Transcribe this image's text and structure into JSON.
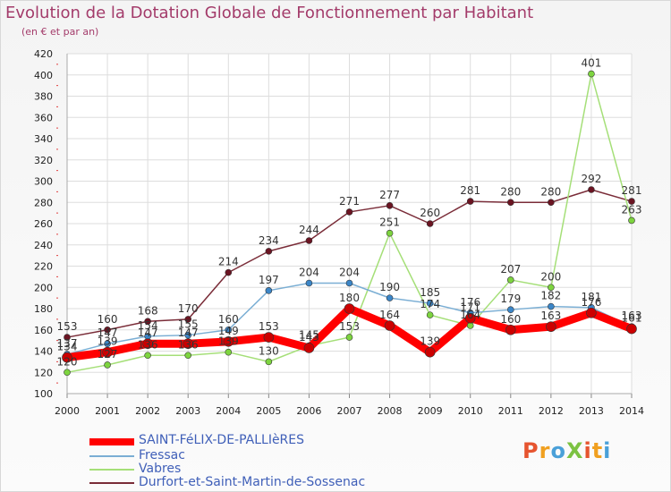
{
  "title": "Evolution de la Dotation Globale de Fonctionnement par Habitant",
  "subtitle": "(en € et par an)",
  "logo": {
    "text": "ProXiti",
    "colors": [
      "#e6542f",
      "#f0a020",
      "#4aa0d8",
      "#7cc242"
    ]
  },
  "chart_data": {
    "type": "line",
    "x": [
      "2000",
      "2001",
      "2002",
      "2003",
      "2004",
      "2005",
      "2006",
      "2007",
      "2008",
      "2009",
      "2010",
      "2011",
      "2012",
      "2013",
      "2014"
    ],
    "ylim": [
      100,
      420
    ],
    "yticks": [
      100,
      120,
      140,
      160,
      180,
      200,
      220,
      240,
      260,
      280,
      300,
      320,
      340,
      360,
      380,
      400,
      420
    ],
    "grid": true,
    "legend_position": "bottom-left",
    "series": [
      {
        "name": "SAINT-FéLIX-DE-PALLIèRES",
        "color": "#ff0000",
        "marker": "#cc0000",
        "width": 9,
        "values": [
          134,
          139,
          147,
          147,
          149,
          153,
          143,
          180,
          164,
          139,
          171,
          160,
          163,
          176,
          161
        ],
        "labels": [
          "134",
          "139",
          "147",
          "147",
          "149",
          "153",
          "143",
          "180",
          "164",
          "139",
          "171",
          "160",
          "163",
          "176",
          "161"
        ]
      },
      {
        "name": "Fressac",
        "color": "#7aaed4",
        "marker": "#3b86c8",
        "width": 1.5,
        "values": [
          137,
          147,
          154,
          155,
          160,
          197,
          204,
          204,
          190,
          185,
          176,
          179,
          182,
          181,
          163
        ],
        "labels": [
          "137",
          "147",
          "154",
          "155",
          "160",
          "197",
          "204",
          "204",
          "190",
          "185",
          "176",
          "179",
          "182",
          "181",
          "163"
        ]
      },
      {
        "name": "Vabres",
        "color": "#a5df78",
        "marker": "#7dd43f",
        "width": 1.5,
        "values": [
          120,
          127,
          136,
          136,
          139,
          130,
          145,
          153,
          251,
          174,
          164,
          207,
          200,
          401,
          263
        ],
        "labels": [
          "120",
          "127",
          "136",
          "136",
          "139",
          "130",
          "145",
          "153",
          "251",
          "174",
          "164",
          "207",
          "200",
          "401",
          "263"
        ]
      },
      {
        "name": "Durfort-et-Saint-Martin-de-Sossenac",
        "color": "#7a2c38",
        "marker": "#6b1422",
        "width": 1.5,
        "values": [
          153,
          160,
          168,
          170,
          214,
          234,
          244,
          271,
          277,
          260,
          281,
          280,
          280,
          292,
          281
        ],
        "labels": [
          "153",
          "160",
          "168",
          "170",
          "214",
          "234",
          "244",
          "271",
          "277",
          "260",
          "281",
          "280",
          "280",
          "292",
          "281"
        ]
      }
    ]
  }
}
